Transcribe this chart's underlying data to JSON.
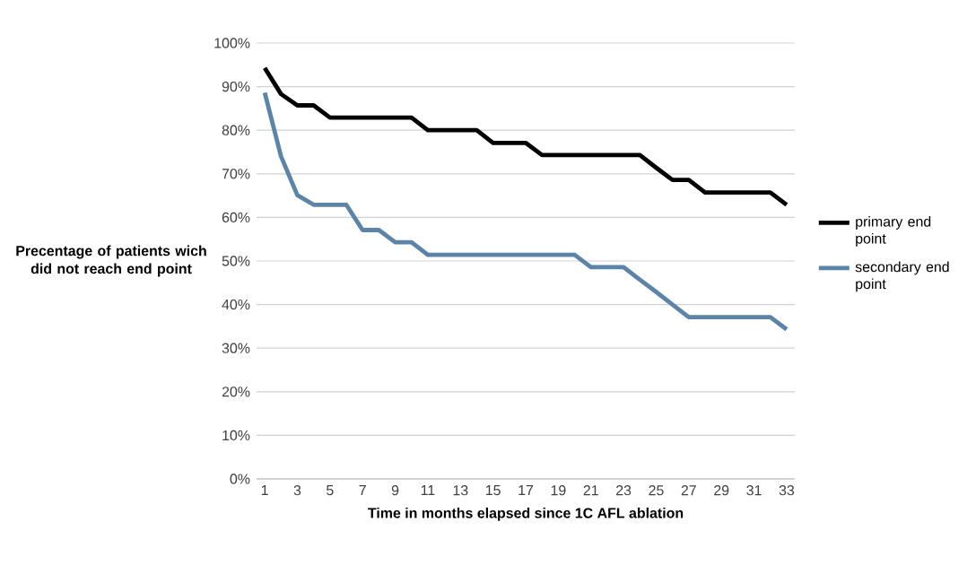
{
  "chart_data": {
    "type": "line",
    "xlabel": "Time in months elapsed since 1C AFL ablation",
    "ylabel": "Precentage of patients wich did not reach end point",
    "categories": [
      "1",
      null,
      "3",
      null,
      "5",
      null,
      "7",
      null,
      "9",
      null,
      "11",
      null,
      "13",
      null,
      "15",
      null,
      "17",
      null,
      "19",
      null,
      "21",
      null,
      "23",
      null,
      "25",
      null,
      "27",
      null,
      "29",
      null,
      "31",
      null,
      "33"
    ],
    "series": [
      {
        "name": "primary end point",
        "color": "#000000",
        "values": [
          94.3,
          88.3,
          85.7,
          85.7,
          82.9,
          82.9,
          82.9,
          82.9,
          82.9,
          82.9,
          80.0,
          80.0,
          80.0,
          80.0,
          77.1,
          77.1,
          77.1,
          74.3,
          74.3,
          74.3,
          74.3,
          74.3,
          74.3,
          74.3,
          71.4,
          68.6,
          68.6,
          65.7,
          65.7,
          65.7,
          65.7,
          65.7,
          62.9
        ]
      },
      {
        "name": "secondary end point",
        "color": "#5b84a8",
        "values": [
          88.6,
          74.0,
          65.1,
          62.9,
          62.9,
          62.9,
          57.1,
          57.1,
          54.3,
          54.3,
          51.4,
          51.4,
          51.4,
          51.4,
          51.4,
          51.4,
          51.4,
          51.4,
          51.4,
          51.4,
          48.6,
          48.6,
          48.6,
          45.7,
          42.9,
          40.0,
          37.1,
          37.1,
          37.1,
          37.1,
          37.1,
          37.1,
          34.3
        ]
      }
    ],
    "ylim": [
      0,
      100
    ],
    "yticks": [
      {
        "value": 0,
        "label": "0%"
      },
      {
        "value": 10,
        "label": "10%"
      },
      {
        "value": 20,
        "label": "20%"
      },
      {
        "value": 30,
        "label": "30%"
      },
      {
        "value": 40,
        "label": "40%"
      },
      {
        "value": 50,
        "label": "50%"
      },
      {
        "value": 60,
        "label": "60%"
      },
      {
        "value": 70,
        "label": "70%"
      },
      {
        "value": 80,
        "label": "80%"
      },
      {
        "value": 90,
        "label": "90%"
      },
      {
        "value": 100,
        "label": "100%"
      }
    ],
    "grid": "y",
    "legend": "right"
  }
}
